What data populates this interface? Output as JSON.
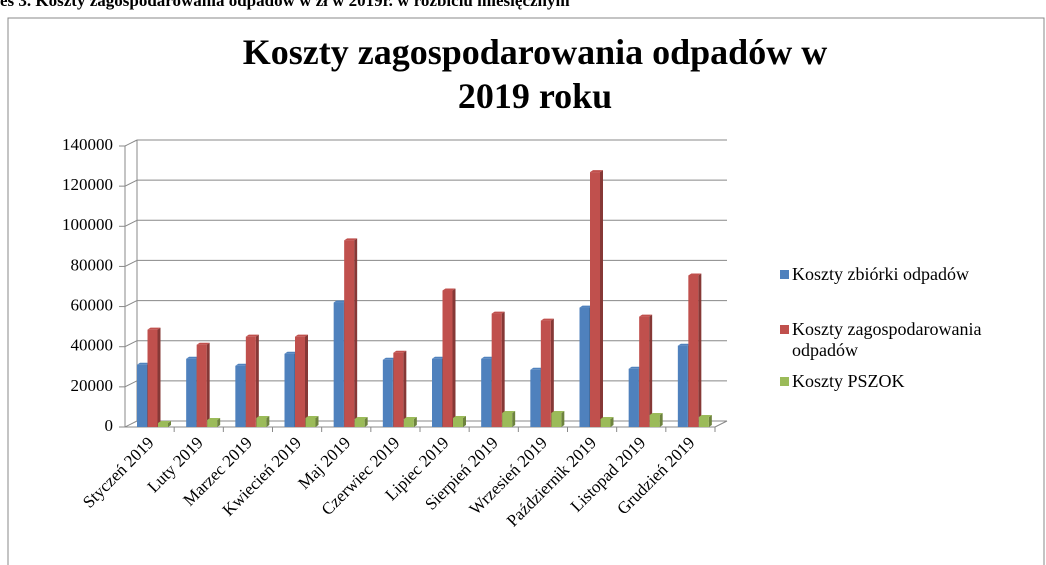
{
  "caption": "es 3. Koszty zagospodarowania odpadów w zł w 2019r. w rozbiciu miesięcznym",
  "chart_data": {
    "type": "bar",
    "title": "Koszty zagospodarowania odpadów w 2019 roku",
    "categories": [
      "Styczeń 2019",
      "Luty 2019",
      "Marzec 2019",
      "Kwiecień 2019",
      "Maj 2019",
      "Czerwiec 2019",
      "Lipiec 2019",
      "Sierpień 2019",
      "Wrzesień 2019",
      "Październik 2019",
      "Listopad 2019",
      "Grudzień 2019"
    ],
    "series": [
      {
        "name": "Koszty zbiórki odpadów",
        "color": "#4f81bd",
        "values": [
          31000,
          34000,
          30500,
          36500,
          62000,
          33500,
          34000,
          34000,
          28500,
          59500,
          29000,
          40500
        ]
      },
      {
        "name": "Koszty zagospodarowania odpadów",
        "color": "#c0504d",
        "values": [
          48500,
          41000,
          45000,
          45000,
          93000,
          37000,
          68000,
          56500,
          53000,
          127000,
          55000,
          75500
        ]
      },
      {
        "name": "Koszty PSZOK",
        "color": "#9bbb59",
        "values": [
          2000,
          3500,
          4500,
          4500,
          4000,
          4000,
          4500,
          7000,
          7000,
          4000,
          6000,
          5000
        ]
      }
    ],
    "ylim": [
      0,
      140000
    ],
    "yticks": [
      0,
      20000,
      40000,
      60000,
      80000,
      100000,
      120000,
      140000
    ],
    "grid": true,
    "legend": "right"
  }
}
